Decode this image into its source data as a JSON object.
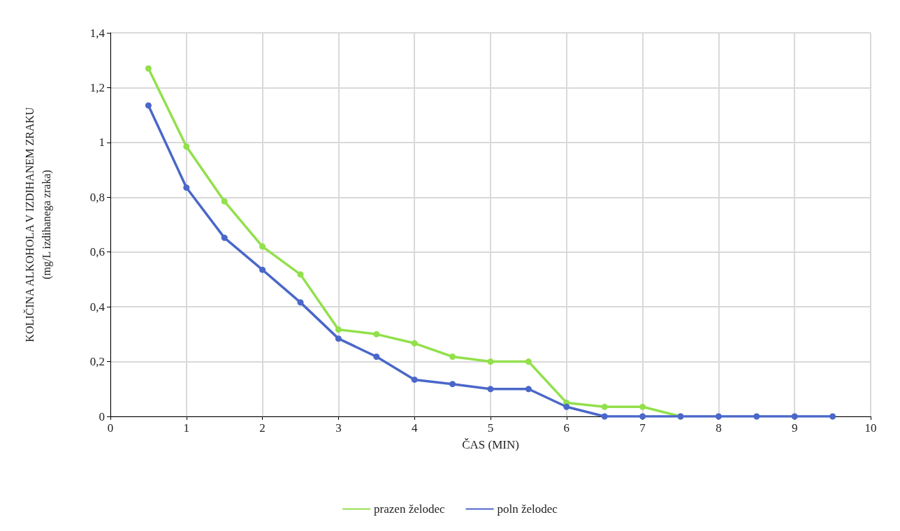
{
  "chart_data": {
    "type": "line",
    "xlabel": "ČAS (MIN)",
    "ylabel": "KOLIČINA ALKOHOLA V IZDIHANEM ZRAKU\n(mg/L izdihanega zraka)",
    "x": [
      0.5,
      1,
      1.5,
      2,
      2.5,
      3,
      3.5,
      4,
      4.5,
      5,
      5.5,
      6,
      6.5,
      7,
      7.5,
      8,
      8.5,
      9,
      9.5
    ],
    "series": [
      {
        "name": "prazen želodec",
        "color": "#92e04c",
        "values": [
          1.27,
          0.985,
          0.785,
          0.62,
          0.518,
          0.317,
          0.3,
          0.267,
          0.218,
          0.2,
          0.2,
          0.05,
          0.035,
          0.035,
          0,
          null,
          null,
          null,
          null
        ]
      },
      {
        "name": "poln želodec",
        "color": "#4a67c9",
        "values": [
          1.135,
          0.835,
          0.652,
          0.535,
          0.416,
          0.284,
          0.218,
          0.134,
          0.118,
          0.1,
          0.1,
          0.035,
          0,
          0,
          0,
          0,
          0,
          0,
          0
        ]
      }
    ],
    "xlim": [
      0,
      10
    ],
    "xticks": [
      0,
      1,
      2,
      3,
      4,
      5,
      6,
      7,
      8,
      9,
      10
    ],
    "ylim": [
      0,
      1.4
    ],
    "yticks": [
      0,
      {
        "value": 0.2,
        "label": "0,2"
      },
      {
        "value": 0.4,
        "label": "0,4"
      },
      {
        "value": 0.6,
        "label": "0,6"
      },
      {
        "value": 0.8,
        "label": "0,8"
      },
      1,
      {
        "value": 1.2,
        "label": "1,2"
      },
      {
        "value": 1.4,
        "label": "1,4"
      }
    ],
    "grid": true,
    "legend": "bottom",
    "marker": "circle",
    "line_style": "solid"
  }
}
